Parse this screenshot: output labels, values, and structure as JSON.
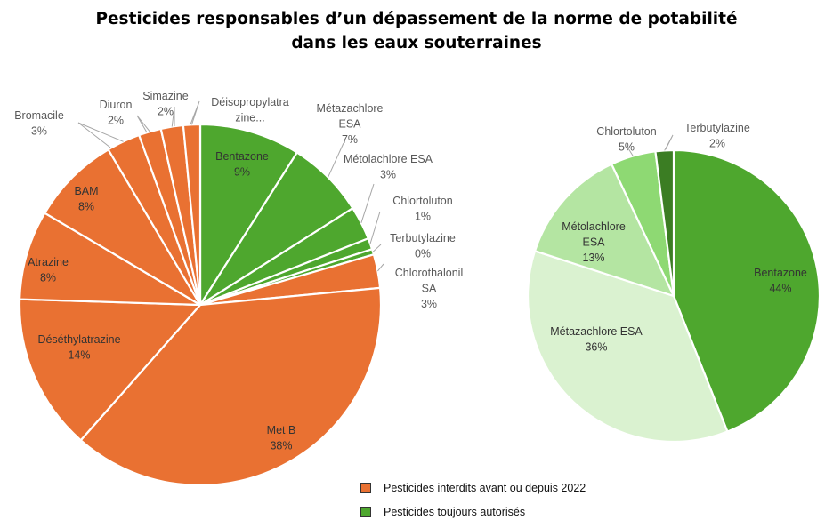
{
  "chart_data": [
    {
      "type": "pie",
      "title": "Pesticides responsables d’un dépassement de la norme de potabilité dans les eaux souterraines",
      "title_lines": [
        "Pesticides responsables d’un dépassement de la norme de potabilité",
        "dans les eaux souterraines"
      ],
      "slices": [
        {
          "name": "Bentazone",
          "label": [
            "Bentazone",
            "9%"
          ],
          "value": 9,
          "group": "allowed",
          "color": "#4ea72e"
        },
        {
          "name": "Métazachlore ESA",
          "label": [
            "Métazachlore",
            "ESA",
            "7%"
          ],
          "value": 7,
          "group": "allowed",
          "color": "#4ea72e"
        },
        {
          "name": "Métolachlore ESA",
          "label": [
            "Métolachlore ESA",
            "3%"
          ],
          "value": 3,
          "group": "allowed",
          "color": "#4ea72e"
        },
        {
          "name": "Chlortoluton",
          "label": [
            "Chlortoluton",
            "1%"
          ],
          "value": 1,
          "group": "allowed",
          "color": "#4ea72e"
        },
        {
          "name": "Terbutylazine",
          "label": [
            "Terbutylazine",
            "0%"
          ],
          "value": 0.5,
          "group": "allowed",
          "color": "#4ea72e"
        },
        {
          "name": "Chlorothalonil SA",
          "label": [
            "Chlorothalonil",
            "SA",
            "3%"
          ],
          "value": 3,
          "group": "banned",
          "color": "#e97132"
        },
        {
          "name": "Met B",
          "label": [
            "Met B",
            "38%"
          ],
          "value": 38,
          "group": "banned",
          "color": "#e97132"
        },
        {
          "name": "Déséthylatrazine",
          "label": [
            "Déséthylatrazine",
            "14%"
          ],
          "value": 14,
          "group": "banned",
          "color": "#e97132"
        },
        {
          "name": "Atrazine",
          "label": [
            "Atrazine",
            "8%"
          ],
          "value": 8,
          "group": "banned",
          "color": "#e97132"
        },
        {
          "name": "BAM",
          "label": [
            "BAM",
            "8%"
          ],
          "value": 8,
          "group": "banned",
          "color": "#e97132"
        },
        {
          "name": "Bromacile",
          "label": [
            "Bromacile",
            "3%"
          ],
          "value": 3,
          "group": "banned",
          "color": "#e97132"
        },
        {
          "name": "Diuron",
          "label": [
            "Diuron",
            "2%"
          ],
          "value": 2,
          "group": "banned",
          "color": "#e97132"
        },
        {
          "name": "Simazine",
          "label": [
            "Simazine",
            "2%"
          ],
          "value": 2,
          "group": "banned",
          "color": "#e97132"
        },
        {
          "name": "Déisopropylatrazine",
          "label": [
            "Déisopropylatra",
            "zine..."
          ],
          "value": 1.5,
          "group": "banned",
          "color": "#e97132"
        }
      ]
    },
    {
      "type": "pie",
      "slices": [
        {
          "name": "Bentazone",
          "label": [
            "Bentazone",
            "44%"
          ],
          "value": 44,
          "color": "#4ea72e"
        },
        {
          "name": "Métazachlore ESA",
          "label": [
            "Métazachlore ESA",
            "36%"
          ],
          "value": 36,
          "color": "#daf2d0"
        },
        {
          "name": "Métolachlore ESA",
          "label": [
            "Métolachlore",
            "ESA",
            "13%"
          ],
          "value": 13,
          "color": "#b4e5a2"
        },
        {
          "name": "Chlortoluton",
          "label": [
            "Chlortoluton",
            "5%"
          ],
          "value": 5,
          "color": "#8ed973"
        },
        {
          "name": "Terbutylazine",
          "label": [
            "Terbutylazine",
            "2%"
          ],
          "value": 2,
          "color": "#3b7d23"
        }
      ]
    }
  ],
  "legend": [
    {
      "label": "Pesticides interdits avant ou depuis 2022",
      "color": "#e97132"
    },
    {
      "label": "Pesticides toujours autorisés",
      "color": "#4ea72e"
    }
  ]
}
